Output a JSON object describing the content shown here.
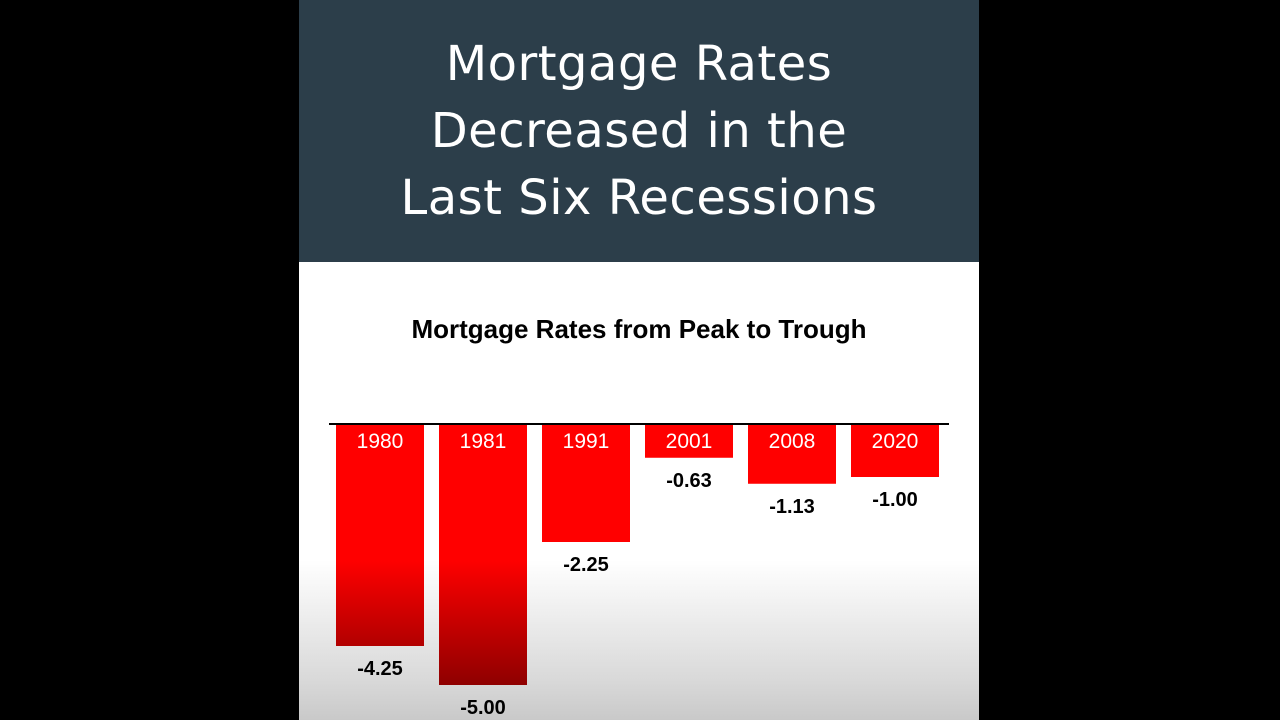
{
  "header": {
    "title_lines": [
      "Mortgage Rates",
      "Decreased in the",
      "Last Six Recessions"
    ],
    "background_color": "#2c3e4a"
  },
  "chart_data": {
    "type": "bar",
    "title": "Mortgage Rates from Peak to Trough",
    "categories": [
      "1980",
      "1981",
      "1991",
      "2001",
      "2008",
      "2020"
    ],
    "values": [
      -4.25,
      -5.0,
      -2.25,
      -0.63,
      -1.13,
      -1.0
    ],
    "value_labels": [
      "-4.25",
      "-5.00",
      "-2.25",
      "-0.63",
      "-1.13",
      "-1.00"
    ],
    "xlabel": "",
    "ylabel": "",
    "ylim": [
      -5.0,
      0
    ],
    "grid": false,
    "bar_color": "#ff0000",
    "bar_color_dark": "#8a0000"
  }
}
